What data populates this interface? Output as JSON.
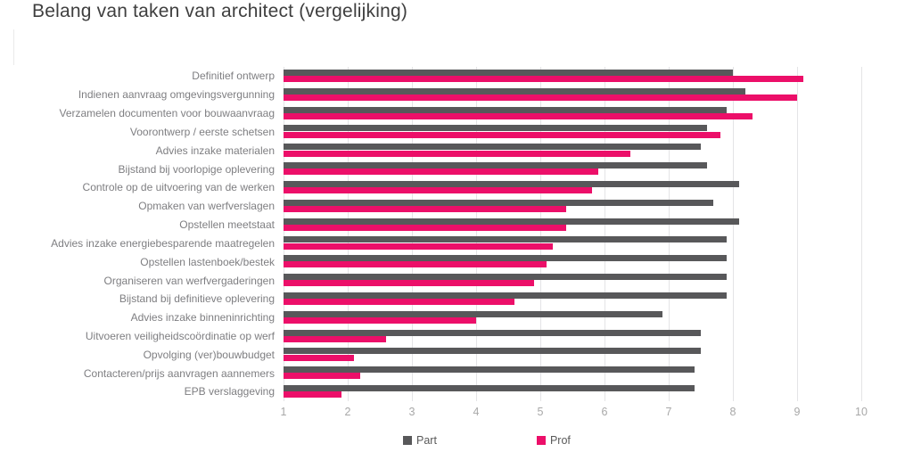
{
  "title": "Belang van taken van architect (vergelijking)",
  "colors": {
    "part": "#58585A",
    "prof": "#EC0F69",
    "gridline": "#E4E4E6",
    "title_text": "#3F3F3F",
    "category_text": "#7E7E81",
    "tick_text": "#A8A8A8",
    "legend_text": "#595959",
    "background": "#FFFFFF"
  },
  "legend": {
    "part_label": "Part",
    "prof_label": "Prof"
  },
  "chart_data": {
    "type": "bar",
    "orientation": "horizontal",
    "title": "Belang van taken van architect (vergelijking)",
    "xlabel": "",
    "ylabel": "",
    "xlim": [
      1,
      10
    ],
    "x_ticks": [
      1,
      2,
      3,
      4,
      5,
      6,
      7,
      8,
      9,
      10
    ],
    "grid": true,
    "legend_position": "bottom",
    "categories": [
      "Definitief ontwerp",
      "Indienen aanvraag omgevingsvergunning",
      "Verzamelen documenten voor bouwaanvraag",
      "Voorontwerp / eerste schetsen",
      "Advies inzake materialen",
      "Bijstand bij voorlopige oplevering",
      "Controle op de uitvoering van de werken",
      "Opmaken van werfverslagen",
      "Opstellen meetstaat",
      "Advies inzake energiebesparende maatregelen",
      "Opstellen lastenboek/bestek",
      "Organiseren van werfvergaderingen",
      "Bijstand bij definitieve oplevering",
      "Advies inzake binneninrichting",
      "Uitvoeren veiligheidscoördinatie op werf",
      "Opvolging (ver)bouwbudget",
      "Contacteren/prijs aanvragen aannemers",
      "EPB verslaggeving"
    ],
    "series": [
      {
        "name": "Part",
        "color": "#58585A",
        "values": [
          8.0,
          8.2,
          7.9,
          7.6,
          7.5,
          7.6,
          8.1,
          7.7,
          8.1,
          7.9,
          7.9,
          7.9,
          7.9,
          6.9,
          7.5,
          7.5,
          7.4,
          7.4
        ]
      },
      {
        "name": "Prof",
        "color": "#EC0F69",
        "values": [
          9.1,
          9.0,
          8.3,
          7.8,
          6.4,
          5.9,
          5.8,
          5.4,
          5.4,
          5.2,
          5.1,
          4.9,
          4.6,
          4.0,
          2.6,
          2.1,
          2.2,
          1.9
        ]
      }
    ]
  }
}
